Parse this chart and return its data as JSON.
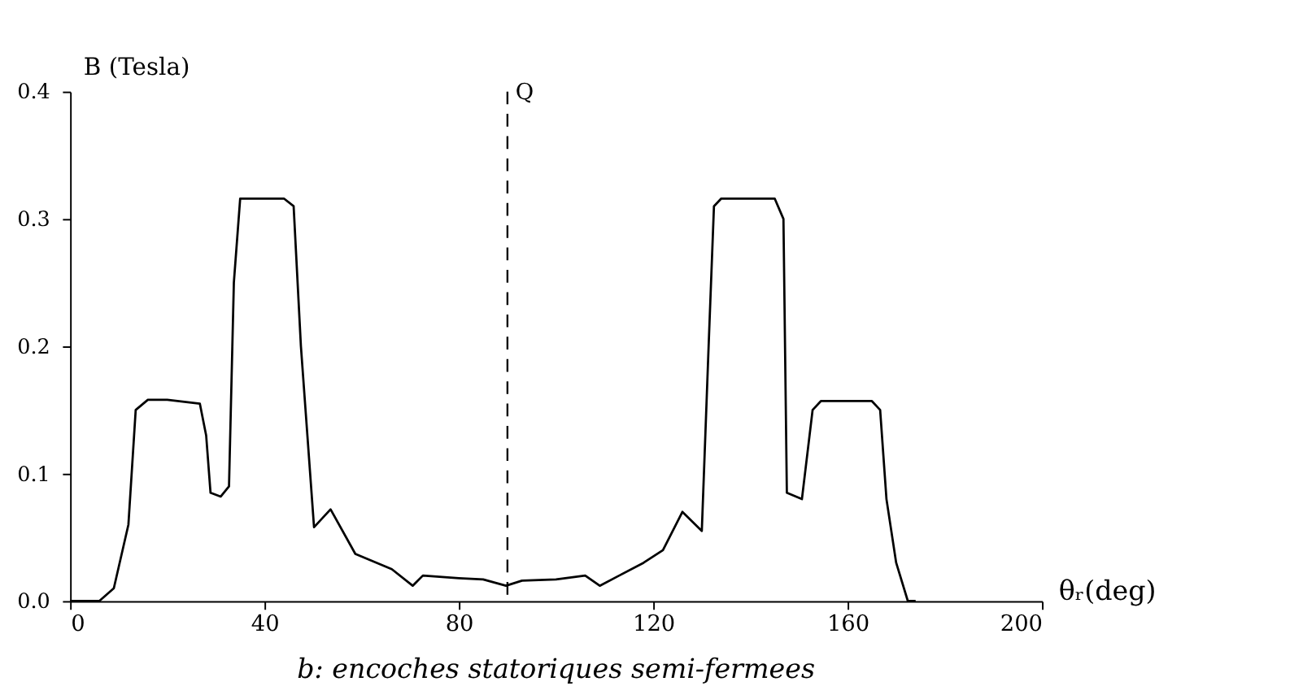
{
  "chart_data": {
    "type": "line",
    "title": "b: encoches statoriques semi-fermees",
    "xlabel": "θᵣ(deg)",
    "ylabel": "B (Tesla)",
    "x": [
      0,
      6,
      9,
      12,
      13.5,
      16,
      20,
      26.7,
      28,
      28.9,
      31,
      32.7,
      33.7,
      35,
      44,
      46,
      47.5,
      50.2,
      53.6,
      58.7,
      66.2,
      70.5,
      72.6,
      80,
      85,
      89.7,
      93,
      100,
      106,
      109,
      113,
      118,
      122,
      126,
      130,
      131.4,
      132.5,
      134,
      145,
      146.8,
      147.5,
      150.6,
      152.8,
      154.5,
      165,
      166.7,
      168,
      170,
      172.4,
      174
    ],
    "series": [
      {
        "color": "#000000",
        "values": [
          0,
          0,
          0.01,
          0.06,
          0.15,
          0.158,
          0.158,
          0.155,
          0.13,
          0.085,
          0.082,
          0.09,
          0.25,
          0.316,
          0.316,
          0.31,
          0.2,
          0.058,
          0.072,
          0.037,
          0.025,
          0.012,
          0.02,
          0.018,
          0.017,
          0.012,
          0.016,
          0.017,
          0.02,
          0.012,
          0.02,
          0.03,
          0.04,
          0.07,
          0.055,
          0.2,
          0.31,
          0.316,
          0.316,
          0.3,
          0.085,
          0.08,
          0.15,
          0.157,
          0.157,
          0.15,
          0.08,
          0.03,
          0,
          0
        ]
      }
    ],
    "xlim": [
      0,
      200
    ],
    "xticks": [
      0,
      40,
      80,
      120,
      160,
      200
    ],
    "ylim": [
      0,
      0.4
    ],
    "yticks": [
      {
        "value": 0,
        "label": "0.0"
      },
      {
        "value": 0.1,
        "label": "0.1"
      },
      {
        "value": 0.2,
        "label": "0.2"
      },
      {
        "value": 0.3,
        "label": "0.3"
      },
      {
        "value": 0.4,
        "label": "0.4"
      }
    ],
    "ref_lines": [
      {
        "axis": "x",
        "value": 90,
        "label": "Q",
        "color": "#000000",
        "line_style": "dashed"
      }
    ],
    "grid": false,
    "marker": "none",
    "line_style": "solid"
  }
}
